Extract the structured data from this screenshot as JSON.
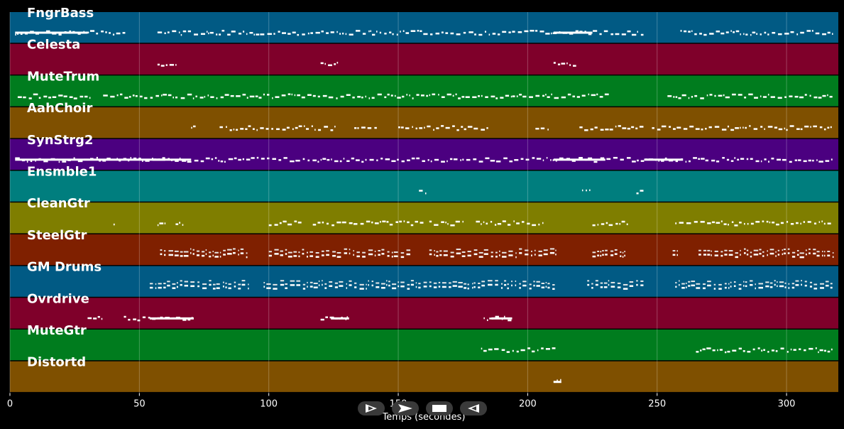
{
  "chart_data": {
    "type": "piano-roll",
    "xlabel": "Temps (secondes)",
    "xlim": [
      0,
      320
    ],
    "xticks": [
      0,
      50,
      100,
      150,
      200,
      250,
      300
    ],
    "grid": true,
    "tracks": [
      {
        "name": "FngrBass",
        "color": "#015a84",
        "regions": [
          [
            2,
            45
          ],
          [
            57,
            245
          ],
          [
            259,
            318
          ]
        ],
        "long_notes": [
          [
            2,
            30
          ],
          [
            210,
            225
          ]
        ]
      },
      {
        "name": "Celesta",
        "color": "#7f002a",
        "regions": [
          [
            57,
            64
          ],
          [
            120,
            127
          ],
          [
            210,
            219
          ]
        ],
        "long_notes": []
      },
      {
        "name": "MuteTrum",
        "color": "#007c1e",
        "regions": [
          [
            3,
            31
          ],
          [
            36,
            65
          ],
          [
            66,
            232
          ],
          [
            254,
            318
          ]
        ],
        "long_notes": []
      },
      {
        "name": "AahChoir",
        "color": "#7f5000",
        "regions": [
          [
            70,
            72
          ],
          [
            81,
            92
          ],
          [
            92,
            126
          ],
          [
            133,
            142
          ],
          [
            150,
            185
          ],
          [
            203,
            208
          ],
          [
            220,
            245
          ],
          [
            248,
            318
          ]
        ],
        "long_notes": []
      },
      {
        "name": "SynStrg2",
        "color": "#4b0080",
        "regions": [
          [
            2,
            318
          ]
        ],
        "long_notes": [
          [
            2,
            60
          ],
          [
            55,
            70
          ],
          [
            210,
            230
          ],
          [
            245,
            260
          ]
        ]
      },
      {
        "name": "Ensmble1",
        "color": "#007e7e",
        "regions": [
          [
            158,
            161
          ],
          [
            221,
            224
          ],
          [
            242,
            245
          ]
        ],
        "long_notes": []
      },
      {
        "name": "CleanGtr",
        "color": "#7f7e00",
        "regions": [
          [
            40,
            41
          ],
          [
            57,
            60
          ],
          [
            64,
            67
          ],
          [
            100,
            113
          ],
          [
            117,
            160
          ],
          [
            162,
            175
          ],
          [
            180,
            206
          ],
          [
            225,
            239
          ],
          [
            257,
            318
          ]
        ],
        "long_notes": []
      },
      {
        "name": "SteelGtr",
        "color": "#7f2000",
        "regions": [
          [
            58,
            92
          ],
          [
            100,
            155
          ],
          [
            162,
            211
          ],
          [
            225,
            238
          ],
          [
            256,
            259
          ],
          [
            266,
            318
          ]
        ],
        "long_notes": []
      },
      {
        "name": "GM Drums",
        "color": "#015a84",
        "regions": [
          [
            54,
            92
          ],
          [
            98,
            211
          ],
          [
            223,
            245
          ],
          [
            257,
            318
          ]
        ],
        "long_notes": []
      },
      {
        "name": "Ovrdrive",
        "color": "#7f002a",
        "regions": [
          [
            30,
            36
          ],
          [
            44,
            71
          ],
          [
            120,
            131
          ],
          [
            183,
            194
          ]
        ],
        "long_notes": [
          [
            54,
            71
          ],
          [
            124,
            131
          ],
          [
            186,
            194
          ]
        ]
      },
      {
        "name": "MuteGtr",
        "color": "#007c1e",
        "regions": [
          [
            182,
            211
          ],
          [
            265,
            318
          ]
        ],
        "long_notes": []
      },
      {
        "name": "Distortd",
        "color": "#7f5000",
        "regions": [
          [
            210,
            213
          ]
        ],
        "long_notes": [
          [
            210,
            213
          ]
        ]
      }
    ]
  },
  "transport": {
    "buttons": [
      {
        "name": "play-icon"
      },
      {
        "name": "fast-forward-icon"
      },
      {
        "name": "stop-icon"
      },
      {
        "name": "rewind-icon"
      }
    ]
  }
}
